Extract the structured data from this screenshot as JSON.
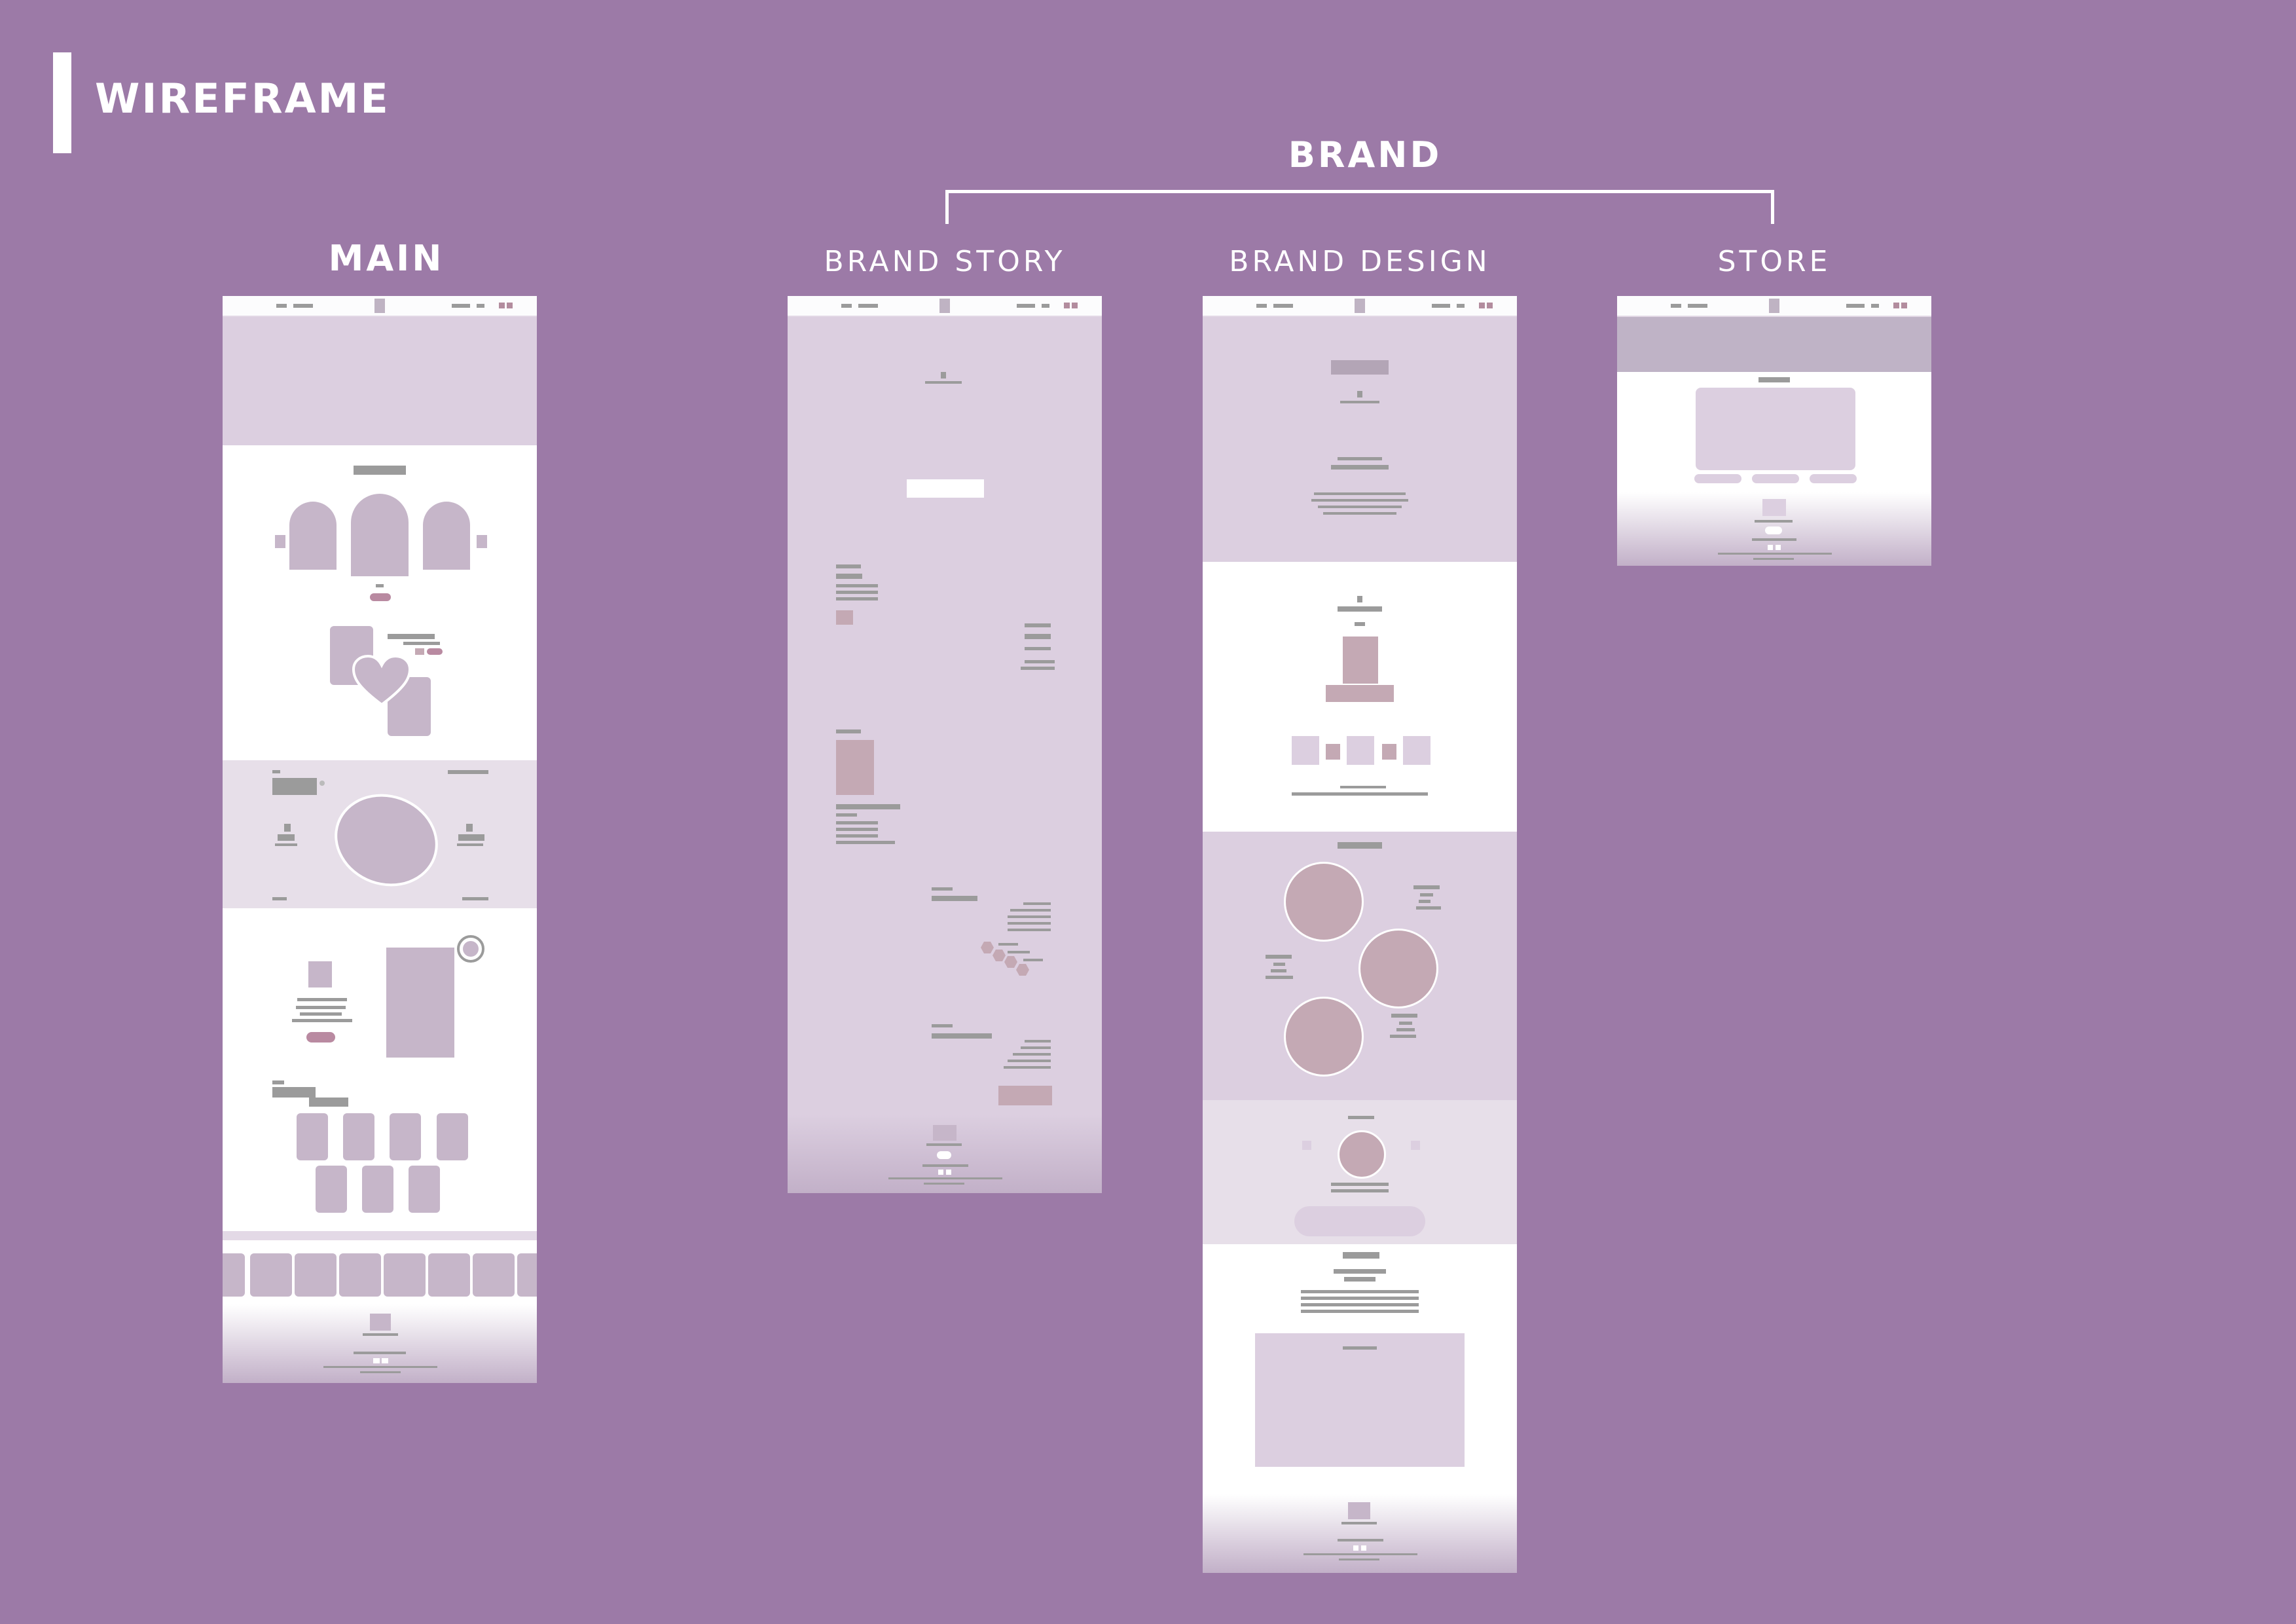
{
  "header": {
    "title": "WIREFRAME"
  },
  "groups": {
    "brand": "BRAND"
  },
  "pages": {
    "main": "MAIN",
    "brand_story": "BRAND STORY",
    "brand_design": "BRAND DESIGN",
    "store": "STORE"
  },
  "colors": {
    "background": "#9c7aa7",
    "page": "#ffffff",
    "section_tint": "#dccfe0",
    "placeholder": "#c6b6c9",
    "text_placeholder": "#9b9b9b",
    "accent": "#b98aa1"
  }
}
